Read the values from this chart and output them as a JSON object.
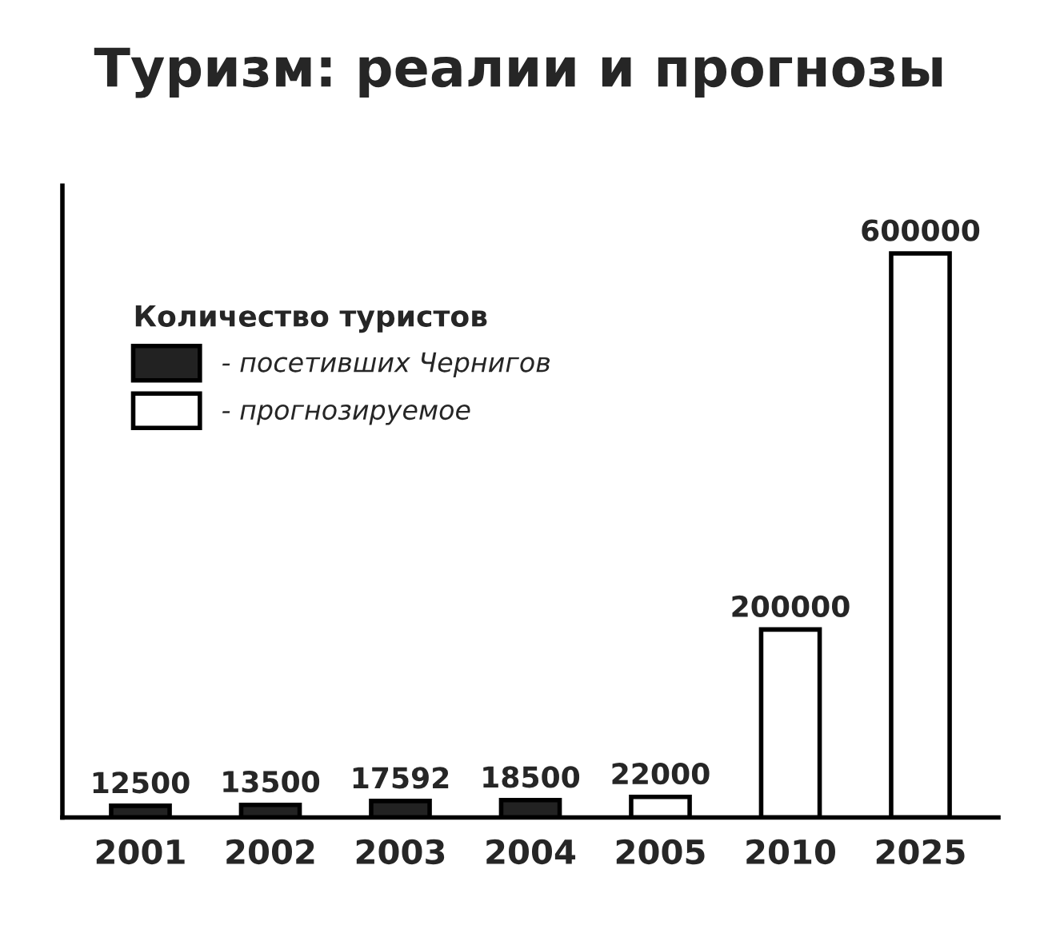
{
  "chart_data": {
    "type": "bar",
    "title": "Туризм: реалии и прогнозы",
    "categories": [
      "2001",
      "2002",
      "2003",
      "2004",
      "2005",
      "2010",
      "2025"
    ],
    "series": [
      {
        "name": "- посетивших Чернигов",
        "color": "#222222",
        "values": [
          12500,
          13500,
          17592,
          18500,
          null,
          null,
          null
        ]
      },
      {
        "name": "- прогнозируемое",
        "color": "#ffffff",
        "values": [
          null,
          null,
          null,
          null,
          22000,
          200000,
          600000
        ]
      }
    ],
    "legend_title": "Количество туристов",
    "legend": "top left",
    "data_labels": true,
    "tick_labels": "x",
    "grid": false
  }
}
